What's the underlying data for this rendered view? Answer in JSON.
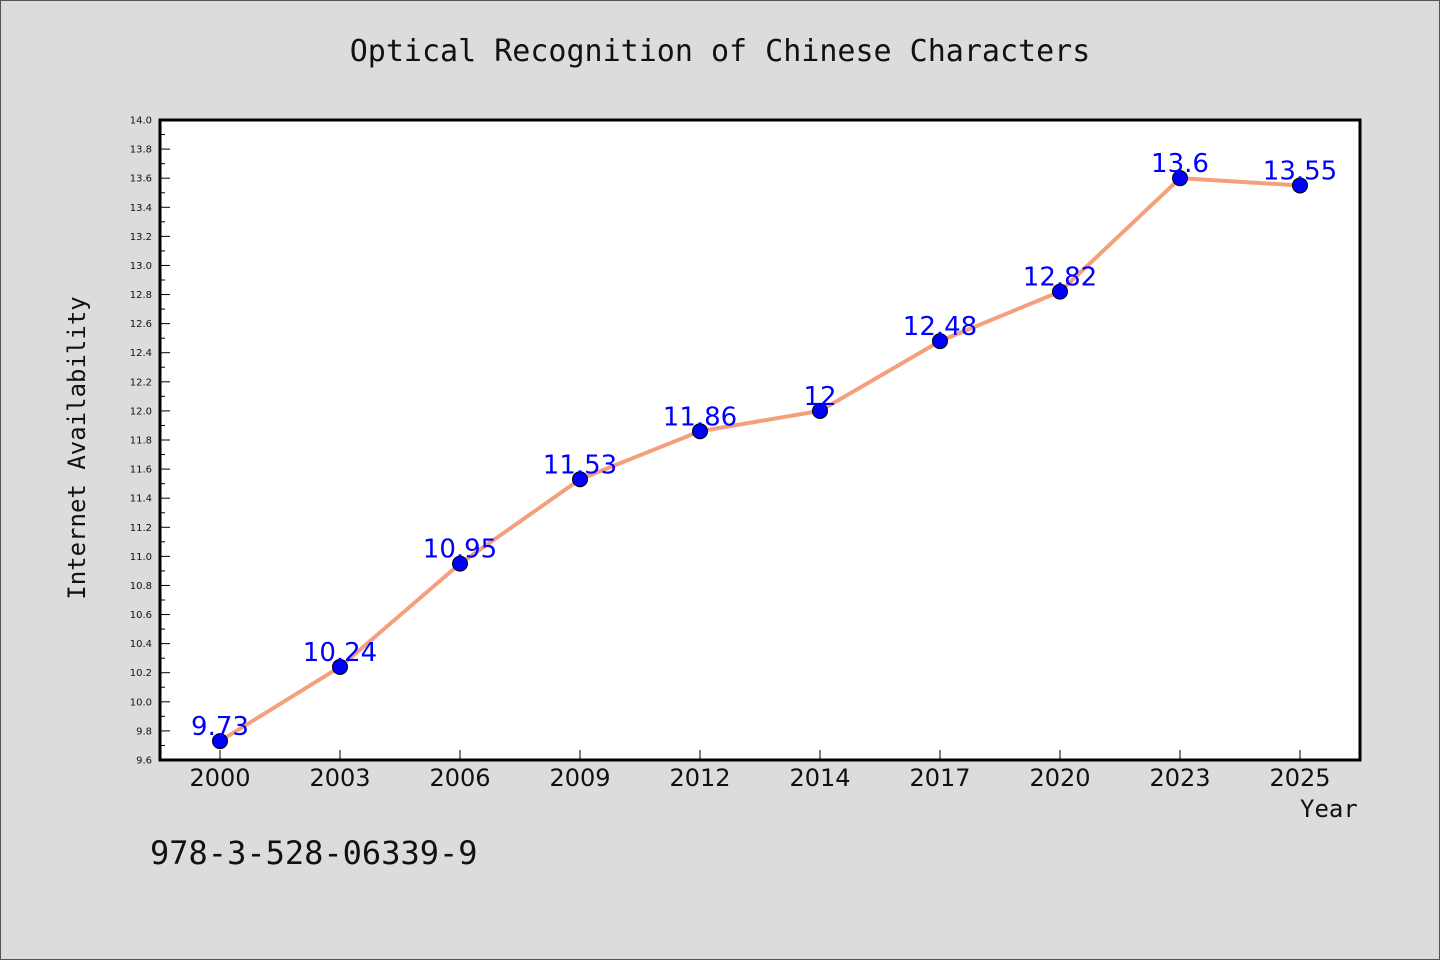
{
  "title": "Optical Recognition of Chinese Characters",
  "isbn_text": "978-3-528-06339-9",
  "chart_data": {
    "type": "line",
    "title": "Optical Recognition of Chinese Characters",
    "xlabel": "Year",
    "ylabel": "Internet Availability",
    "categories": [
      "2000",
      "2003",
      "2006",
      "2009",
      "2012",
      "2014",
      "2017",
      "2020",
      "2023",
      "2025"
    ],
    "series": [
      {
        "values": [
          9.73,
          10.24,
          10.95,
          11.53,
          11.86,
          12,
          12.48,
          12.82,
          13.6,
          13.55
        ],
        "labels": [
          "9.73",
          "10.24",
          "10.95",
          "11.53",
          "11.86",
          "12",
          "12.48",
          "12.82",
          "13.6",
          "13.55"
        ],
        "line_color": "#f4a07c",
        "marker_color": "#0000ff"
      }
    ],
    "ylim": [
      9.6,
      14.0
    ],
    "yticks": [
      "9.6",
      "9.8",
      "10.0",
      "10.2",
      "10.4",
      "10.6",
      "10.8",
      "11.0",
      "11.2",
      "11.4",
      "11.6",
      "11.8",
      "12.0",
      "12.2",
      "12.4",
      "12.6",
      "12.8",
      "13.0",
      "13.2",
      "13.4",
      "13.6",
      "13.8",
      "14.0"
    ],
    "grid": false,
    "legend": "none",
    "colors": {
      "background": "#dcdcdc",
      "plot_background": "#ffffff",
      "data_label": "#0000ff"
    }
  }
}
